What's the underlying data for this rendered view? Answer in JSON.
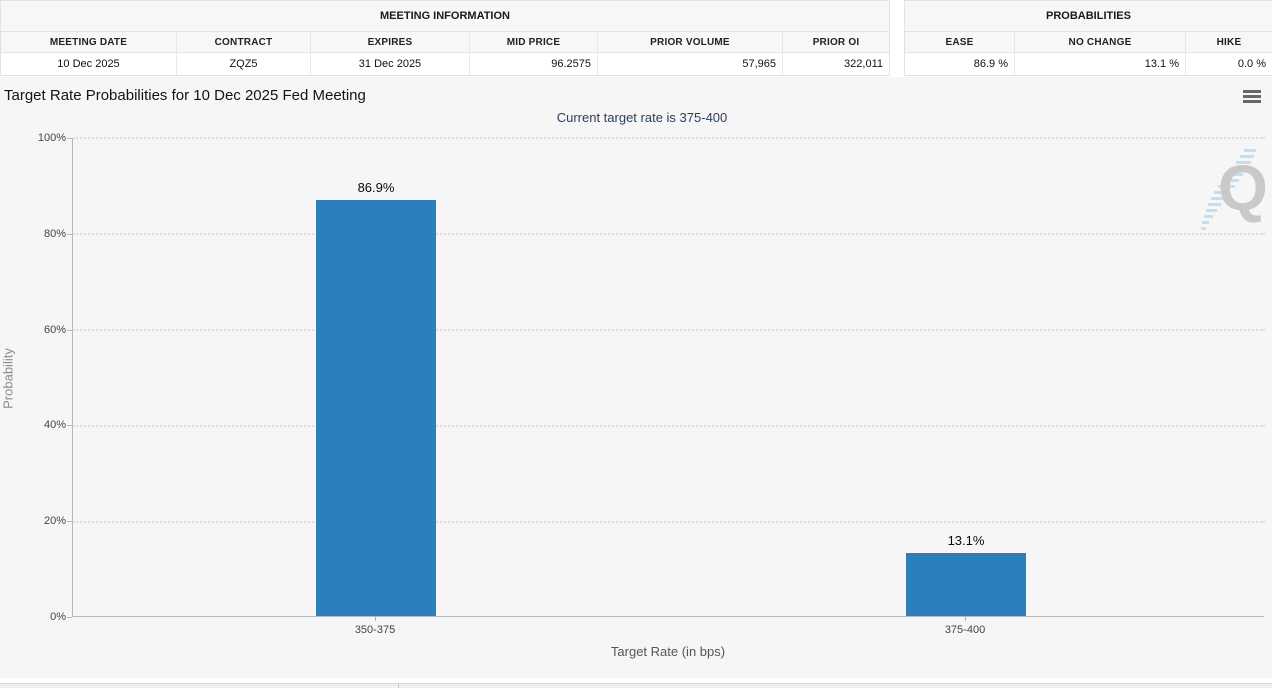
{
  "meeting_info": {
    "title": "MEETING INFORMATION",
    "columns": [
      "MEETING DATE",
      "CONTRACT",
      "EXPIRES",
      "MID PRICE",
      "PRIOR VOLUME",
      "PRIOR OI"
    ],
    "values": [
      "10 Dec 2025",
      "ZQZ5",
      "31 Dec 2025",
      "96.2575",
      "57,965",
      "322,011"
    ]
  },
  "probabilities": {
    "title": "PROBABILITIES",
    "columns": [
      "EASE",
      "NO CHANGE",
      "HIKE"
    ],
    "values": [
      "86.9 %",
      "13.1 %",
      "0.0 %"
    ]
  },
  "chart": {
    "title": "Target Rate Probabilities for 10 Dec 2025 Fed Meeting",
    "subtitle": "Current target rate is 375-400",
    "menu_icon": "hamburger-icon",
    "watermark_letter": "Q"
  },
  "chart_data": {
    "type": "bar",
    "title": "Target Rate Probabilities for 10 Dec 2025 Fed Meeting",
    "subtitle": "Current target rate is 375-400",
    "categories": [
      "350-375",
      "375-400"
    ],
    "values": [
      86.9,
      13.1
    ],
    "bar_labels": [
      "86.9%",
      "13.1%"
    ],
    "xlabel": "Target Rate (in bps)",
    "ylabel": "Probability",
    "ylim": [
      0,
      100
    ],
    "yticks": [
      "0%",
      "20%",
      "40%",
      "60%",
      "80%",
      "100%"
    ],
    "grid": "dotted-horizontal",
    "legend": "none",
    "bar_color": "#2d7ebc"
  },
  "colors": {
    "bar": "#2d7ebc",
    "panel_background": "#f6f6f6",
    "subtitle_text": "#2c3e5f",
    "table_header_bg": "#f7f7f7",
    "table_border": "#e2e2e2",
    "watermark_stripes": "#bfe2f2",
    "watermark_letter": "#c9c9c9"
  }
}
